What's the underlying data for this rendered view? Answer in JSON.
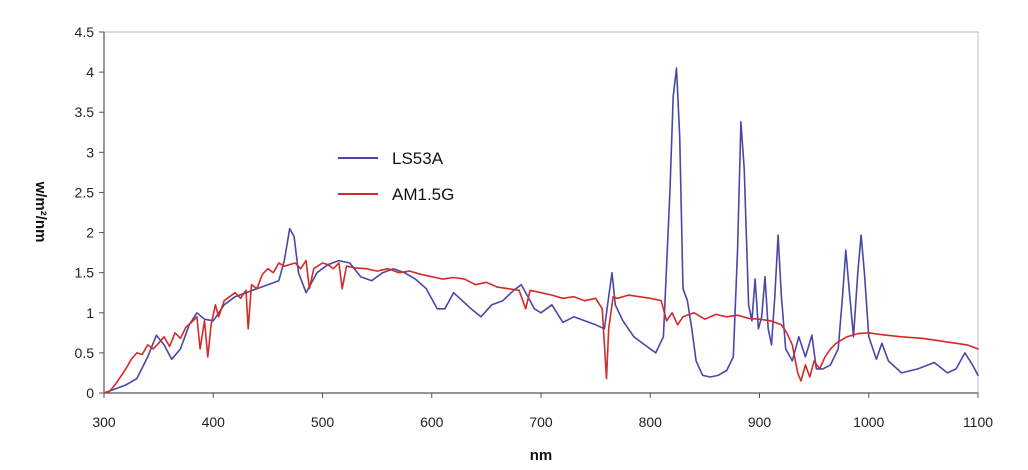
{
  "chart_data": {
    "type": "line",
    "title": "",
    "xlabel": "nm",
    "ylabel": "w/m²/nm",
    "xlim": [
      300,
      1100
    ],
    "ylim": [
      0,
      4.5
    ],
    "xticks": [
      "300",
      "400",
      "500",
      "600",
      "700",
      "800",
      "900",
      "1000",
      "1100"
    ],
    "yticks": [
      "0",
      "0.5",
      "1",
      "1.5",
      "2",
      "2.5",
      "3",
      "3.5",
      "4",
      "4.5"
    ],
    "grid": false,
    "legend_position": "upper-left-inside",
    "series": [
      {
        "name": "LS53A",
        "color": "#4a47a8",
        "x": [
          300,
          310,
          320,
          330,
          340,
          348,
          355,
          362,
          370,
          378,
          385,
          392,
          400,
          410,
          420,
          430,
          440,
          450,
          460,
          465,
          470,
          474,
          478,
          485,
          495,
          505,
          515,
          525,
          535,
          545,
          555,
          565,
          575,
          585,
          595,
          605,
          612,
          620,
          628,
          636,
          645,
          655,
          665,
          675,
          682,
          688,
          694,
          700,
          710,
          720,
          730,
          740,
          750,
          758,
          762,
          765,
          768,
          775,
          785,
          795,
          805,
          812,
          818,
          821,
          824,
          827,
          830,
          834,
          838,
          842,
          848,
          855,
          862,
          870,
          876,
          880,
          883,
          886,
          890,
          893,
          896,
          899,
          902,
          905,
          908,
          911,
          914,
          917,
          920,
          924,
          930,
          936,
          942,
          948,
          952,
          958,
          965,
          972,
          976,
          979,
          982,
          986,
          990,
          993,
          996,
          1000,
          1007,
          1012,
          1018,
          1030,
          1045,
          1060,
          1072,
          1080,
          1088,
          1095,
          1100
        ],
        "y": [
          0.0,
          0.05,
          0.1,
          0.18,
          0.45,
          0.72,
          0.6,
          0.42,
          0.55,
          0.85,
          1.0,
          0.92,
          0.9,
          1.1,
          1.2,
          1.25,
          1.3,
          1.35,
          1.4,
          1.65,
          2.05,
          1.95,
          1.5,
          1.25,
          1.5,
          1.6,
          1.65,
          1.62,
          1.45,
          1.4,
          1.5,
          1.55,
          1.5,
          1.42,
          1.3,
          1.05,
          1.05,
          1.25,
          1.15,
          1.05,
          0.95,
          1.1,
          1.15,
          1.28,
          1.35,
          1.2,
          1.05,
          1.0,
          1.1,
          0.88,
          0.95,
          0.9,
          0.85,
          0.8,
          1.2,
          1.5,
          1.1,
          0.9,
          0.7,
          0.6,
          0.5,
          0.7,
          2.5,
          3.7,
          4.05,
          3.2,
          1.3,
          1.15,
          0.8,
          0.4,
          0.22,
          0.2,
          0.22,
          0.28,
          0.45,
          1.8,
          3.38,
          2.8,
          1.1,
          0.9,
          1.42,
          0.8,
          0.95,
          1.45,
          0.8,
          0.6,
          1.2,
          1.97,
          1.2,
          0.55,
          0.4,
          0.7,
          0.45,
          0.72,
          0.3,
          0.3,
          0.35,
          0.55,
          1.2,
          1.78,
          1.3,
          0.7,
          1.5,
          1.97,
          1.5,
          0.7,
          0.42,
          0.62,
          0.4,
          0.25,
          0.3,
          0.38,
          0.25,
          0.3,
          0.5,
          0.35,
          0.22
        ]
      },
      {
        "name": "AM1.5G",
        "color": "#d42a2a",
        "x": [
          300,
          305,
          310,
          315,
          320,
          325,
          330,
          335,
          340,
          345,
          350,
          355,
          360,
          365,
          370,
          375,
          380,
          385,
          388,
          392,
          395,
          398,
          402,
          405,
          410,
          415,
          420,
          425,
          430,
          432,
          435,
          440,
          445,
          450,
          455,
          460,
          465,
          470,
          475,
          480,
          485,
          488,
          492,
          500,
          505,
          510,
          515,
          518,
          522,
          530,
          540,
          550,
          560,
          570,
          580,
          590,
          600,
          610,
          620,
          630,
          640,
          650,
          660,
          670,
          680,
          686,
          690,
          700,
          710,
          720,
          730,
          740,
          750,
          756,
          760,
          762,
          766,
          770,
          780,
          790,
          800,
          810,
          815,
          820,
          825,
          830,
          840,
          850,
          860,
          870,
          880,
          890,
          900,
          910,
          920,
          925,
          930,
          935,
          938,
          942,
          946,
          950,
          955,
          960,
          965,
          970,
          980,
          990,
          1000,
          1010,
          1030,
          1050,
          1070,
          1090,
          1100
        ],
        "y": [
          0.0,
          0.02,
          0.1,
          0.2,
          0.3,
          0.42,
          0.5,
          0.48,
          0.6,
          0.55,
          0.62,
          0.7,
          0.58,
          0.75,
          0.68,
          0.82,
          0.88,
          0.95,
          0.55,
          0.9,
          0.45,
          0.85,
          1.1,
          0.95,
          1.15,
          1.2,
          1.25,
          1.18,
          1.28,
          0.8,
          1.35,
          1.3,
          1.48,
          1.55,
          1.5,
          1.62,
          1.58,
          1.6,
          1.62,
          1.55,
          1.65,
          1.3,
          1.55,
          1.62,
          1.6,
          1.55,
          1.62,
          1.3,
          1.58,
          1.56,
          1.55,
          1.52,
          1.55,
          1.5,
          1.52,
          1.48,
          1.45,
          1.42,
          1.44,
          1.42,
          1.35,
          1.38,
          1.32,
          1.3,
          1.28,
          1.05,
          1.28,
          1.25,
          1.22,
          1.18,
          1.2,
          1.15,
          1.18,
          1.05,
          0.18,
          0.8,
          1.2,
          1.18,
          1.22,
          1.2,
          1.18,
          1.15,
          0.9,
          1.0,
          0.85,
          0.95,
          1.0,
          0.92,
          0.98,
          0.95,
          0.97,
          0.93,
          0.92,
          0.9,
          0.85,
          0.75,
          0.6,
          0.25,
          0.15,
          0.35,
          0.2,
          0.4,
          0.3,
          0.45,
          0.55,
          0.62,
          0.7,
          0.74,
          0.75,
          0.73,
          0.7,
          0.68,
          0.64,
          0.6,
          0.55
        ]
      }
    ]
  }
}
